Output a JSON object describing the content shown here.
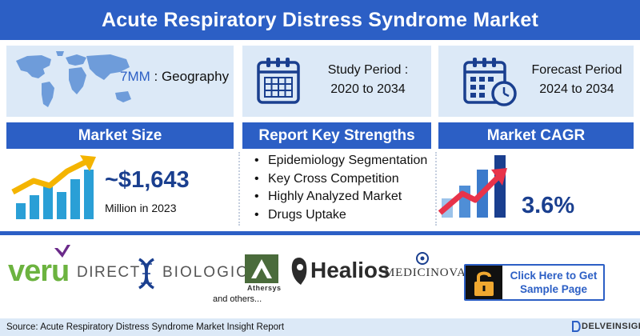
{
  "header": {
    "title": "Acute Respiratory Distress Syndrome Market"
  },
  "geography": {
    "highlight": "7MM",
    "label": " : Geography",
    "icon": "world-map-icon"
  },
  "study": {
    "label": "Study Period :",
    "range": "2020 to 2034",
    "icon": "calendar-icon"
  },
  "forecast": {
    "label": "Forecast Period",
    "range": "2024 to 2034",
    "icon": "calendar-clock-icon"
  },
  "market_size": {
    "heading": "Market Size",
    "value": "~$1,643",
    "subtitle": "Million in 2023",
    "icon": "growth-chart-icon"
  },
  "strengths": {
    "heading": "Report Key Strengths",
    "items": [
      "Epidemiology Segmentation",
      "Key Cross Competition",
      "Highly Analyzed Market",
      "Drugs Uptake"
    ]
  },
  "cagr": {
    "heading": "Market CAGR",
    "value": "3.6%",
    "icon": "rising-bars-icon"
  },
  "companies": {
    "veru": "veru",
    "direct": "DIRECT",
    "biologics": "BIOLOGICS",
    "athersys": "Athersys",
    "healios": "Healios",
    "medicinova": "MEDICINOVA",
    "others": "and others..."
  },
  "cta": {
    "label_line1": "Click Here to Get",
    "label_line2": "Sample Page",
    "icon": "padlock-icon"
  },
  "footer": {
    "source": "Source: Acute Respiratory Distress Syndrome Market Insight Report",
    "brand": "DELVEINSIGHT"
  },
  "colors": {
    "brand_blue": "#2c5fc5",
    "panel_bg": "#dce9f7",
    "accent_dark": "#1a3f8f",
    "veru_green": "#6cb33f",
    "cagr_arrow": "#e8334a"
  }
}
